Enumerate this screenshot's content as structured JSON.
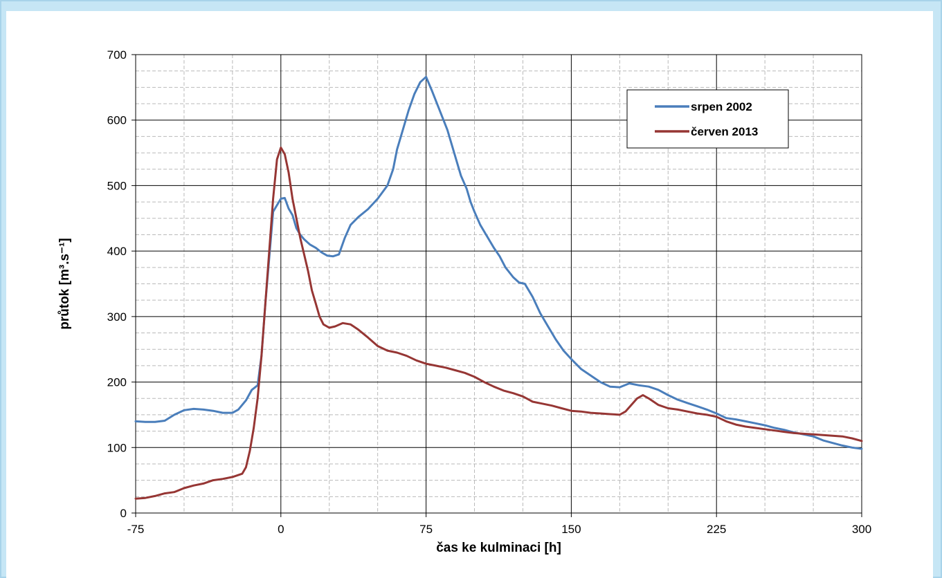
{
  "chart_data": {
    "type": "line",
    "xlabel": "čas ke kulminaci  [h]",
    "ylabel": "průtok [m³.s⁻¹]",
    "xlim": [
      -75,
      300
    ],
    "ylim": [
      0,
      700
    ],
    "xticks": [
      -75,
      0,
      75,
      150,
      225,
      300
    ],
    "yticks": [
      0,
      100,
      200,
      300,
      400,
      500,
      600,
      700
    ],
    "x_minor_step": 25,
    "y_minor_step": 25,
    "grid": true,
    "legend_position": "top-right",
    "series": [
      {
        "name": "srpen 2002",
        "color": "#4a7ebb",
        "points": [
          [
            -75,
            140
          ],
          [
            -70,
            139
          ],
          [
            -65,
            139
          ],
          [
            -60,
            141
          ],
          [
            -55,
            150
          ],
          [
            -50,
            157
          ],
          [
            -45,
            159
          ],
          [
            -40,
            158
          ],
          [
            -35,
            156
          ],
          [
            -30,
            153
          ],
          [
            -25,
            153
          ],
          [
            -22,
            158
          ],
          [
            -18,
            172
          ],
          [
            -15,
            188
          ],
          [
            -12,
            195
          ],
          [
            -10,
            240
          ],
          [
            -8,
            320
          ],
          [
            -6,
            390
          ],
          [
            -4,
            460
          ],
          [
            -2,
            470
          ],
          [
            0,
            480
          ],
          [
            2,
            481
          ],
          [
            4,
            465
          ],
          [
            6,
            455
          ],
          [
            8,
            435
          ],
          [
            10,
            425
          ],
          [
            12,
            418
          ],
          [
            15,
            410
          ],
          [
            18,
            405
          ],
          [
            21,
            398
          ],
          [
            24,
            393
          ],
          [
            27,
            392
          ],
          [
            30,
            395
          ],
          [
            33,
            420
          ],
          [
            36,
            440
          ],
          [
            40,
            452
          ],
          [
            45,
            464
          ],
          [
            50,
            480
          ],
          [
            55,
            500
          ],
          [
            58,
            525
          ],
          [
            60,
            555
          ],
          [
            63,
            585
          ],
          [
            66,
            615
          ],
          [
            69,
            640
          ],
          [
            72,
            658
          ],
          [
            75,
            666
          ],
          [
            78,
            645
          ],
          [
            82,
            615
          ],
          [
            86,
            585
          ],
          [
            90,
            545
          ],
          [
            93,
            515
          ],
          [
            96,
            495
          ],
          [
            98,
            475
          ],
          [
            100,
            460
          ],
          [
            103,
            440
          ],
          [
            106,
            425
          ],
          [
            110,
            405
          ],
          [
            113,
            392
          ],
          [
            116,
            375
          ],
          [
            120,
            360
          ],
          [
            123,
            352
          ],
          [
            126,
            350
          ],
          [
            130,
            330
          ],
          [
            134,
            305
          ],
          [
            138,
            285
          ],
          [
            142,
            265
          ],
          [
            146,
            248
          ],
          [
            150,
            235
          ],
          [
            155,
            220
          ],
          [
            160,
            210
          ],
          [
            165,
            200
          ],
          [
            170,
            193
          ],
          [
            175,
            192
          ],
          [
            180,
            198
          ],
          [
            185,
            195
          ],
          [
            190,
            193
          ],
          [
            195,
            188
          ],
          [
            200,
            180
          ],
          [
            205,
            173
          ],
          [
            210,
            168
          ],
          [
            215,
            163
          ],
          [
            220,
            158
          ],
          [
            225,
            152
          ],
          [
            230,
            145
          ],
          [
            235,
            143
          ],
          [
            240,
            140
          ],
          [
            245,
            137
          ],
          [
            250,
            134
          ],
          [
            255,
            130
          ],
          [
            260,
            127
          ],
          [
            265,
            123
          ],
          [
            270,
            120
          ],
          [
            275,
            117
          ],
          [
            280,
            111
          ],
          [
            285,
            107
          ],
          [
            290,
            103
          ],
          [
            295,
            100
          ],
          [
            300,
            98
          ]
        ]
      },
      {
        "name": "červen 2013",
        "color": "#963634",
        "points": [
          [
            -75,
            22
          ],
          [
            -70,
            23
          ],
          [
            -65,
            26
          ],
          [
            -60,
            30
          ],
          [
            -55,
            32
          ],
          [
            -50,
            38
          ],
          [
            -45,
            42
          ],
          [
            -40,
            45
          ],
          [
            -35,
            50
          ],
          [
            -30,
            52
          ],
          [
            -25,
            55
          ],
          [
            -20,
            60
          ],
          [
            -18,
            70
          ],
          [
            -16,
            95
          ],
          [
            -14,
            130
          ],
          [
            -12,
            175
          ],
          [
            -10,
            240
          ],
          [
            -8,
            320
          ],
          [
            -6,
            400
          ],
          [
            -4,
            480
          ],
          [
            -2,
            540
          ],
          [
            0,
            558
          ],
          [
            2,
            548
          ],
          [
            4,
            520
          ],
          [
            6,
            480
          ],
          [
            8,
            450
          ],
          [
            10,
            420
          ],
          [
            12,
            395
          ],
          [
            14,
            370
          ],
          [
            16,
            340
          ],
          [
            18,
            320
          ],
          [
            20,
            300
          ],
          [
            22,
            288
          ],
          [
            25,
            283
          ],
          [
            28,
            285
          ],
          [
            32,
            290
          ],
          [
            36,
            288
          ],
          [
            40,
            280
          ],
          [
            45,
            268
          ],
          [
            50,
            255
          ],
          [
            55,
            248
          ],
          [
            60,
            245
          ],
          [
            65,
            240
          ],
          [
            70,
            233
          ],
          [
            75,
            228
          ],
          [
            80,
            225
          ],
          [
            85,
            222
          ],
          [
            90,
            218
          ],
          [
            95,
            214
          ],
          [
            100,
            208
          ],
          [
            105,
            200
          ],
          [
            110,
            193
          ],
          [
            115,
            187
          ],
          [
            120,
            183
          ],
          [
            125,
            178
          ],
          [
            130,
            170
          ],
          [
            135,
            167
          ],
          [
            140,
            164
          ],
          [
            145,
            160
          ],
          [
            150,
            156
          ],
          [
            155,
            155
          ],
          [
            160,
            153
          ],
          [
            165,
            152
          ],
          [
            170,
            151
          ],
          [
            175,
            150
          ],
          [
            178,
            155
          ],
          [
            181,
            165
          ],
          [
            184,
            175
          ],
          [
            187,
            180
          ],
          [
            190,
            175
          ],
          [
            195,
            165
          ],
          [
            200,
            160
          ],
          [
            205,
            158
          ],
          [
            210,
            155
          ],
          [
            215,
            152
          ],
          [
            220,
            150
          ],
          [
            225,
            147
          ],
          [
            230,
            140
          ],
          [
            235,
            135
          ],
          [
            240,
            132
          ],
          [
            245,
            130
          ],
          [
            250,
            128
          ],
          [
            255,
            126
          ],
          [
            260,
            124
          ],
          [
            265,
            122
          ],
          [
            270,
            121
          ],
          [
            275,
            120
          ],
          [
            280,
            119
          ],
          [
            285,
            118
          ],
          [
            290,
            117
          ],
          [
            295,
            114
          ],
          [
            300,
            110
          ]
        ]
      }
    ]
  }
}
